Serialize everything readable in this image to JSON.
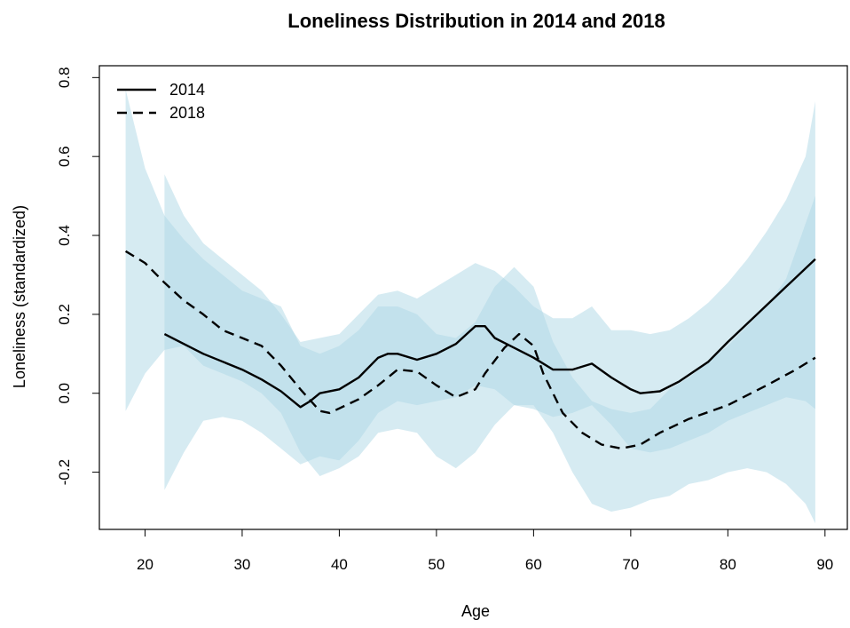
{
  "chart_data": {
    "type": "line",
    "title": "Loneliness Distribution in 2014 and 2018",
    "xlabel": "Age",
    "ylabel": "Loneliness (standardized)",
    "xlim": [
      15.3,
      92.3
    ],
    "ylim": [
      -0.345,
      0.83
    ],
    "x_ticks": [
      20,
      30,
      40,
      50,
      60,
      70,
      80,
      90
    ],
    "y_ticks": [
      -0.2,
      0.0,
      0.2,
      0.4,
      0.6,
      0.8
    ],
    "y_tick_labels": [
      "-0.2",
      "0.0",
      "0.2",
      "0.4",
      "0.6",
      "0.8"
    ],
    "x_tick_labels": [
      "20",
      "30",
      "40",
      "50",
      "60",
      "70",
      "80",
      "90"
    ],
    "grid": false,
    "legend": {
      "position": "top-left",
      "entries": [
        {
          "label": "2014",
          "style": "solid"
        },
        {
          "label": "2018",
          "style": "dashed"
        }
      ]
    },
    "colors": {
      "line": "#000000",
      "band": "#add8e6",
      "band_opacity": 0.5
    },
    "series": [
      {
        "name": "2014",
        "style": "solid",
        "points": [
          [
            22,
            0.15
          ],
          [
            24,
            0.125
          ],
          [
            26,
            0.1
          ],
          [
            28,
            0.08
          ],
          [
            30,
            0.06
          ],
          [
            32,
            0.035
          ],
          [
            34,
            0.005
          ],
          [
            36,
            -0.035
          ],
          [
            37,
            -0.02
          ],
          [
            38,
            0.0
          ],
          [
            40,
            0.01
          ],
          [
            42,
            0.04
          ],
          [
            44,
            0.09
          ],
          [
            45,
            0.1
          ],
          [
            46,
            0.1
          ],
          [
            48,
            0.085
          ],
          [
            50,
            0.1
          ],
          [
            52,
            0.125
          ],
          [
            54,
            0.17
          ],
          [
            55,
            0.17
          ],
          [
            56,
            0.14
          ],
          [
            58,
            0.115
          ],
          [
            60,
            0.09
          ],
          [
            62,
            0.06
          ],
          [
            64,
            0.06
          ],
          [
            66,
            0.075
          ],
          [
            68,
            0.04
          ],
          [
            70,
            0.01
          ],
          [
            71,
            0.0
          ],
          [
            73,
            0.005
          ],
          [
            75,
            0.03
          ],
          [
            78,
            0.08
          ],
          [
            80,
            0.13
          ],
          [
            83,
            0.2
          ],
          [
            86,
            0.27
          ],
          [
            89,
            0.34
          ]
        ],
        "band": [
          [
            22,
            -0.245,
            0.555
          ],
          [
            24,
            -0.15,
            0.45
          ],
          [
            26,
            -0.07,
            0.38
          ],
          [
            28,
            -0.06,
            0.34
          ],
          [
            30,
            -0.07,
            0.3
          ],
          [
            32,
            -0.1,
            0.26
          ],
          [
            34,
            -0.14,
            0.2
          ],
          [
            36,
            -0.18,
            0.13
          ],
          [
            38,
            -0.16,
            0.14
          ],
          [
            40,
            -0.17,
            0.15
          ],
          [
            42,
            -0.12,
            0.2
          ],
          [
            44,
            -0.05,
            0.25
          ],
          [
            46,
            -0.02,
            0.26
          ],
          [
            48,
            -0.03,
            0.24
          ],
          [
            50,
            -0.02,
            0.27
          ],
          [
            52,
            -0.01,
            0.3
          ],
          [
            54,
            0.02,
            0.33
          ],
          [
            56,
            0.01,
            0.31
          ],
          [
            58,
            -0.03,
            0.27
          ],
          [
            60,
            -0.04,
            0.22
          ],
          [
            62,
            -0.06,
            0.19
          ],
          [
            64,
            -0.05,
            0.19
          ],
          [
            66,
            -0.03,
            0.22
          ],
          [
            68,
            -0.08,
            0.16
          ],
          [
            70,
            -0.14,
            0.16
          ],
          [
            72,
            -0.15,
            0.15
          ],
          [
            74,
            -0.14,
            0.16
          ],
          [
            76,
            -0.12,
            0.19
          ],
          [
            78,
            -0.1,
            0.23
          ],
          [
            80,
            -0.07,
            0.28
          ],
          [
            82,
            -0.05,
            0.34
          ],
          [
            84,
            -0.03,
            0.41
          ],
          [
            86,
            -0.01,
            0.49
          ],
          [
            88,
            -0.02,
            0.6
          ],
          [
            89,
            -0.04,
            0.74
          ]
        ]
      },
      {
        "name": "2018",
        "style": "dashed",
        "points": [
          [
            18,
            0.36
          ],
          [
            20,
            0.33
          ],
          [
            22,
            0.28
          ],
          [
            24,
            0.235
          ],
          [
            26,
            0.2
          ],
          [
            28,
            0.16
          ],
          [
            30,
            0.14
          ],
          [
            32,
            0.12
          ],
          [
            34,
            0.07
          ],
          [
            36,
            0.01
          ],
          [
            38,
            -0.045
          ],
          [
            39,
            -0.05
          ],
          [
            42,
            -0.015
          ],
          [
            44,
            0.02
          ],
          [
            46,
            0.06
          ],
          [
            48,
            0.055
          ],
          [
            50,
            0.02
          ],
          [
            52,
            -0.01
          ],
          [
            54,
            0.01
          ],
          [
            55,
            0.05
          ],
          [
            57,
            0.115
          ],
          [
            58.5,
            0.15
          ],
          [
            60,
            0.12
          ],
          [
            61,
            0.05
          ],
          [
            63,
            -0.05
          ],
          [
            65,
            -0.1
          ],
          [
            67,
            -0.13
          ],
          [
            69,
            -0.14
          ],
          [
            71,
            -0.13
          ],
          [
            73,
            -0.1
          ],
          [
            76,
            -0.065
          ],
          [
            80,
            -0.03
          ],
          [
            84,
            0.02
          ],
          [
            87,
            0.06
          ],
          [
            89,
            0.09
          ]
        ],
        "band": [
          [
            18,
            -0.045,
            0.77
          ],
          [
            20,
            0.05,
            0.57
          ],
          [
            22,
            0.11,
            0.45
          ],
          [
            24,
            0.12,
            0.39
          ],
          [
            26,
            0.07,
            0.34
          ],
          [
            28,
            0.05,
            0.3
          ],
          [
            30,
            0.03,
            0.26
          ],
          [
            32,
            0.0,
            0.24
          ],
          [
            34,
            -0.05,
            0.22
          ],
          [
            36,
            -0.15,
            0.12
          ],
          [
            38,
            -0.21,
            0.1
          ],
          [
            40,
            -0.19,
            0.12
          ],
          [
            42,
            -0.16,
            0.16
          ],
          [
            44,
            -0.1,
            0.22
          ],
          [
            46,
            -0.09,
            0.22
          ],
          [
            48,
            -0.1,
            0.2
          ],
          [
            50,
            -0.16,
            0.15
          ],
          [
            52,
            -0.19,
            0.14
          ],
          [
            54,
            -0.15,
            0.18
          ],
          [
            56,
            -0.08,
            0.27
          ],
          [
            58,
            -0.03,
            0.32
          ],
          [
            60,
            -0.03,
            0.27
          ],
          [
            62,
            -0.1,
            0.13
          ],
          [
            64,
            -0.2,
            0.04
          ],
          [
            66,
            -0.28,
            -0.02
          ],
          [
            68,
            -0.3,
            -0.04
          ],
          [
            70,
            -0.29,
            -0.05
          ],
          [
            72,
            -0.27,
            -0.04
          ],
          [
            74,
            -0.26,
            0.01
          ],
          [
            76,
            -0.23,
            0.04
          ],
          [
            78,
            -0.22,
            0.08
          ],
          [
            80,
            -0.2,
            0.12
          ],
          [
            82,
            -0.19,
            0.17
          ],
          [
            84,
            -0.2,
            0.22
          ],
          [
            86,
            -0.23,
            0.29
          ],
          [
            88,
            -0.28,
            0.43
          ],
          [
            89,
            -0.33,
            0.5
          ]
        ]
      }
    ]
  }
}
